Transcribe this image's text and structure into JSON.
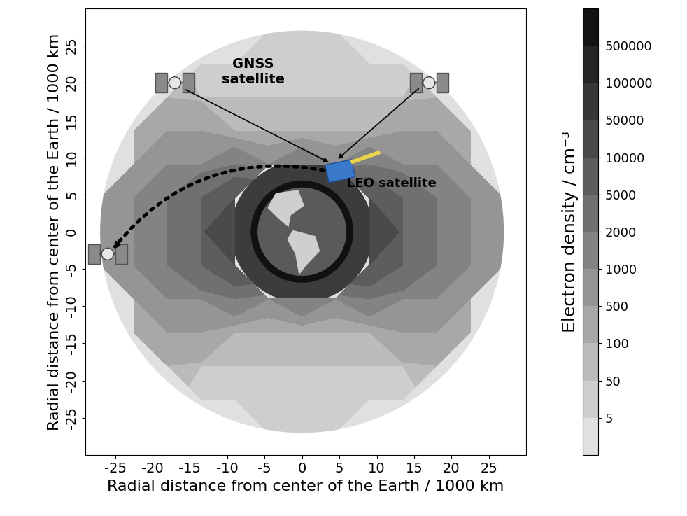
{
  "chart_data": {
    "type": "contour",
    "xlabel": "Radial distance from center of the Earth / 1000 km",
    "ylabel": "Radial distance from center of the Earth / 1000 km",
    "xlim": [
      -29,
      30
    ],
    "ylim": [
      -30,
      30
    ],
    "xticks": [
      -25,
      -20,
      -15,
      -10,
      -5,
      0,
      5,
      10,
      15,
      20,
      25
    ],
    "yticks": [
      -25,
      -20,
      -15,
      -10,
      -5,
      0,
      5,
      10,
      15,
      20,
      25
    ],
    "x": [
      -27,
      -22.5,
      -18,
      -13.5,
      -9,
      -4.5,
      0,
      4.5,
      9,
      13.5,
      18,
      22.5,
      27
    ],
    "y": [
      -27,
      -22.5,
      -18,
      -13.5,
      -9,
      -4.5,
      0,
      4.5,
      9,
      13.5,
      18,
      22.5,
      27
    ],
    "density": [
      [
        null,
        null,
        null,
        null,
        null,
        5,
        5,
        5,
        null,
        null,
        null,
        null,
        null
      ],
      [
        null,
        null,
        null,
        20,
        20,
        10,
        10,
        10,
        20,
        20,
        null,
        null,
        null
      ],
      [
        null,
        null,
        100,
        50,
        50,
        50,
        50,
        50,
        50,
        50,
        100,
        null,
        null
      ],
      [
        null,
        100,
        500,
        500,
        100,
        100,
        100,
        100,
        100,
        500,
        500,
        100,
        null
      ],
      [
        null,
        500,
        1000,
        1000,
        2000,
        1000,
        2000,
        1000,
        2000,
        1000,
        1000,
        500,
        null
      ],
      [
        500,
        1000,
        2000,
        5000,
        10000,
        null,
        null,
        null,
        10000,
        5000,
        2000,
        1000,
        500
      ],
      [
        500,
        1000,
        2000,
        5000,
        50000,
        null,
        null,
        null,
        50000,
        5000,
        2000,
        1000,
        500
      ],
      [
        500,
        1000,
        2000,
        5000,
        10000,
        null,
        null,
        null,
        10000,
        5000,
        2000,
        1000,
        500
      ],
      [
        null,
        500,
        1000,
        1000,
        2000,
        1000,
        2000,
        1000,
        2000,
        1000,
        1000,
        500,
        null
      ],
      [
        null,
        100,
        500,
        500,
        100,
        100,
        100,
        100,
        100,
        500,
        500,
        100,
        null
      ],
      [
        null,
        null,
        100,
        50,
        50,
        50,
        50,
        50,
        50,
        50,
        100,
        null,
        null
      ],
      [
        null,
        null,
        null,
        20,
        20,
        10,
        10,
        10,
        20,
        20,
        null,
        null,
        null
      ],
      [
        null,
        null,
        null,
        null,
        null,
        5,
        5,
        5,
        null,
        null,
        null,
        null,
        null
      ]
    ],
    "colorbar": {
      "label": "Electron density / cm⁻³",
      "levels": [
        1,
        5,
        50,
        100,
        500,
        1000,
        2000,
        5000,
        10000,
        50000,
        100000,
        500000,
        1000000
      ],
      "ticks": [
        5,
        50,
        100,
        500,
        1000,
        2000,
        5000,
        10000,
        50000,
        100000,
        500000
      ]
    },
    "annotations": {
      "gnss": "GNSS\nsatellite",
      "leo": "LEO satellite"
    }
  }
}
